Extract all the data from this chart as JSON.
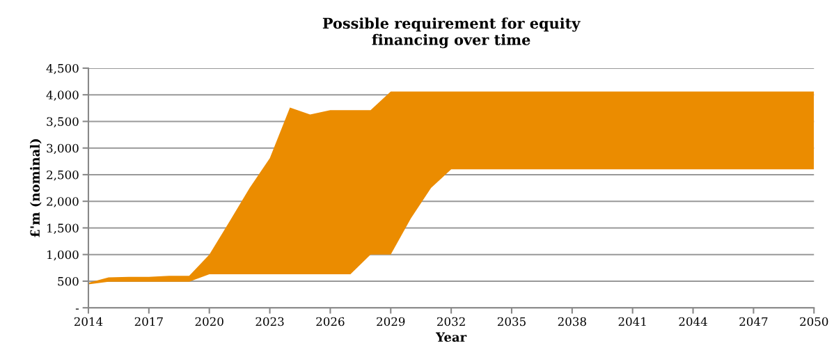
{
  "chart_data": {
    "type": "area",
    "title": "Possible requirement for equity\nfinancing over time",
    "xlabel": "Year",
    "ylabel": "£'m (nominal)",
    "x": [
      2014,
      2015,
      2016,
      2017,
      2018,
      2019,
      2020,
      2021,
      2022,
      2023,
      2024,
      2025,
      2026,
      2027,
      2028,
      2029,
      2030,
      2031,
      2032,
      2033,
      2034,
      2035,
      2036,
      2037,
      2038,
      2039,
      2040,
      2041,
      2042,
      2043,
      2044,
      2045,
      2046,
      2047,
      2048,
      2049,
      2050
    ],
    "series": [
      {
        "color": "#eb8c00",
        "values": [
          null,
          null,
          null,
          null,
          null,
          null,
          null,
          null,
          null,
          null,
          null,
          null,
          null,
          null,
          null,
          null,
          null,
          null,
          null,
          null,
          null,
          null,
          null,
          null,
          null,
          null,
          null,
          null,
          null,
          null,
          null,
          null,
          null,
          null,
          null,
          null,
          null
        ],
        "upper": [
          470,
          570,
          580,
          580,
          600,
          600,
          1000,
          1620,
          2250,
          2810,
          3760,
          3630,
          3710,
          3710,
          3710,
          4060,
          4060,
          4060,
          4060,
          4060,
          4060,
          4060,
          4060,
          4060,
          4060,
          4060,
          4060,
          4060,
          4060,
          4060,
          4060,
          4060,
          4060,
          4060,
          4060,
          4060,
          4060
        ],
        "lower": [
          440,
          490,
          490,
          490,
          490,
          490,
          630,
          630,
          630,
          630,
          630,
          630,
          630,
          630,
          1000,
          1000,
          1680,
          2250,
          2600,
          2600,
          2600,
          2600,
          2600,
          2600,
          2600,
          2600,
          2600,
          2600,
          2600,
          2600,
          2600,
          2600,
          2600,
          2600,
          2600,
          2600,
          2600
        ]
      }
    ],
    "xlim": [
      2014,
      2050
    ],
    "xticks": [
      2014,
      2017,
      2020,
      2023,
      2026,
      2029,
      2032,
      2035,
      2038,
      2041,
      2044,
      2047,
      2050
    ],
    "ylim": [
      0,
      4500
    ],
    "yticks": [
      {
        "value": 0,
        "label": "-"
      },
      {
        "value": 500,
        "label": "500"
      },
      {
        "value": 1000,
        "label": "1,000"
      },
      {
        "value": 1500,
        "label": "1,500"
      },
      {
        "value": 2000,
        "label": "2,000"
      },
      {
        "value": 2500,
        "label": "2,500"
      },
      {
        "value": 3000,
        "label": "3,000"
      },
      {
        "value": 3500,
        "label": "3,500"
      },
      {
        "value": 4000,
        "label": "4,000"
      },
      {
        "value": 4500,
        "label": "4,500"
      }
    ],
    "grid": "y"
  }
}
